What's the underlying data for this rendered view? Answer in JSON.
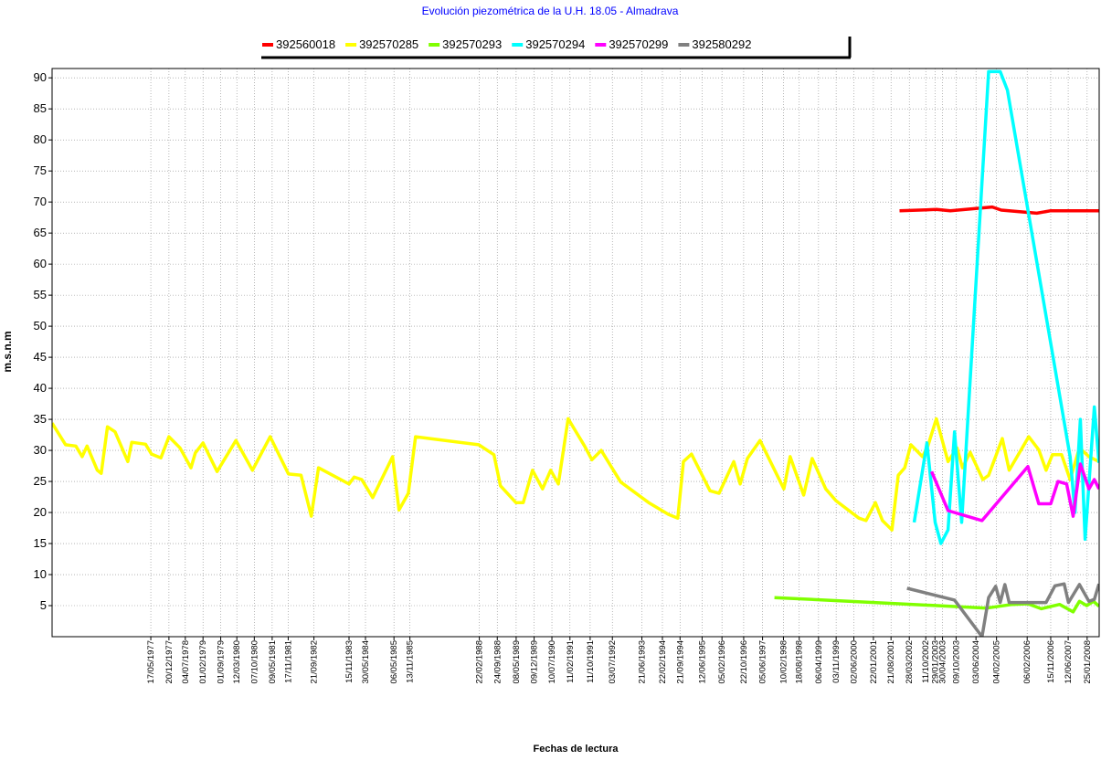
{
  "chart_data": {
    "type": "line",
    "title": "Evolución piezométrica de la U.H. 18.05 - Almadrava",
    "xlabel": "Fechas de lectura",
    "ylabel": "m.s.n.m",
    "xlim": [
      "20/02/1974",
      "17/06/2008"
    ],
    "ylim": [
      0,
      91.5
    ],
    "yticks": [
      5,
      10,
      15,
      20,
      25,
      30,
      35,
      40,
      45,
      50,
      55,
      60,
      65,
      70,
      75,
      80,
      85,
      90
    ],
    "xticks": [
      "17/05/1977",
      "20/12/1977",
      "04/07/1978",
      "01/02/1979",
      "01/09/1979",
      "12/03/1980",
      "07/10/1980",
      "09/05/1981",
      "17/11/1981",
      "21/09/1982",
      "15/11/1983",
      "30/05/1984",
      "06/05/1985",
      "13/11/1985",
      "22/02/1988",
      "24/09/1988",
      "08/05/1989",
      "09/12/1989",
      "10/07/1990",
      "11/02/1991",
      "11/10/1991",
      "03/07/1992",
      "21/06/1993",
      "22/02/1994",
      "21/09/1994",
      "12/06/1995",
      "05/02/1996",
      "22/10/1996",
      "05/06/1997",
      "10/02/1998",
      "18/08/1998",
      "06/04/1999",
      "03/11/1999",
      "02/06/2000",
      "22/01/2001",
      "21/08/2001",
      "28/03/2002",
      "11/10/2002",
      "29/01/2003",
      "30/04/2003",
      "09/10/2003",
      "03/06/2004",
      "04/02/2005",
      "06/02/2006",
      "15/11/2006",
      "12/06/2007",
      "25/01/2008"
    ],
    "grid": true,
    "series": [
      {
        "name": "392560018",
        "color": "#ff0000",
        "x": [
          "01/12/2001",
          "15/02/2003",
          "01/08/2003",
          "15/12/2004",
          "01/04/2005",
          "01/06/2006",
          "15/11/2006",
          "15/06/2008"
        ],
        "values": [
          68.6,
          68.8,
          68.6,
          69.2,
          68.7,
          68.2,
          68.6,
          68.6
        ]
      },
      {
        "name": "392570285",
        "color": "#ffff00",
        "x": [
          "20/02/1974",
          "01/08/1974",
          "01/12/1974",
          "15/02/1975",
          "15/04/1975",
          "15/08/1975",
          "01/10/1975",
          "15/12/1975",
          "15/03/1976",
          "15/08/1976",
          "01/10/1976",
          "15/03/1977",
          "25/05/1977",
          "15/09/1977",
          "20/12/1977",
          "01/05/1978",
          "10/09/1978",
          "01/11/1978",
          "01/02/1979",
          "20/07/1979",
          "01/03/1980",
          "15/09/1980",
          "15/04/1981",
          "20/11/1981",
          "20/04/1982",
          "20/08/1982",
          "15/11/1982",
          "15/11/1983",
          "15/01/1984",
          "15/04/1984",
          "25/08/1984",
          "20/04/1985",
          "05/07/1985",
          "25/10/1985",
          "20/01/1986",
          "15/02/1988",
          "15/08/1988",
          "01/11/1988",
          "05/05/1989",
          "01/08/1989",
          "20/11/1989",
          "20/03/1990",
          "25/06/1990",
          "25/09/1990",
          "20/01/1991",
          "05/08/1991",
          "01/11/1991",
          "20/02/1992",
          "10/10/1992",
          "10/09/1993",
          "05/05/1994",
          "25/08/1994",
          "01/11/1994",
          "05/02/1995",
          "15/09/1995",
          "01/01/1996",
          "25/06/1996",
          "10/09/1996",
          "05/12/1996",
          "05/05/1997",
          "15/02/1998",
          "01/05/1998",
          "10/10/1998",
          "20/01/1999",
          "01/07/1999",
          "01/11/1999",
          "01/08/2000",
          "25/10/2000",
          "15/02/2001",
          "10/05/2001",
          "01/09/2001",
          "15/11/2001",
          "01/02/2002",
          "15/04/2002",
          "01/09/2002",
          "05/11/2002",
          "15/02/2003",
          "05/07/2003",
          "20/10/2003",
          "25/12/2003",
          "25/03/2004",
          "25/08/2004",
          "01/11/2004",
          "15/04/2005",
          "05/07/2005",
          "25/02/2006",
          "25/06/2006",
          "20/09/2006",
          "05/12/2006",
          "25/03/2007",
          "05/07/2007",
          "25/10/2007",
          "15/02/2008",
          "15/06/2008"
        ],
        "values": [
          34.4,
          30.9,
          30.7,
          29,
          30.7,
          26.8,
          26.3,
          33.8,
          33,
          28.2,
          31.3,
          31,
          29.4,
          28.8,
          32.2,
          30.4,
          27.2,
          29.6,
          31.2,
          26.6,
          31.6,
          26.8,
          32.2,
          26.2,
          26,
          19.4,
          27.2,
          24.6,
          25.7,
          25.3,
          22.4,
          29,
          20.4,
          23.1,
          32.2,
          30.9,
          29.3,
          24.3,
          21.6,
          21.6,
          26.8,
          23.8,
          26.8,
          24.6,
          35.1,
          30.7,
          28.5,
          30,
          24.9,
          21.6,
          19.7,
          19.1,
          28.2,
          29.4,
          23.5,
          23.1,
          28.2,
          24.6,
          28.7,
          31.6,
          23.8,
          29,
          22.8,
          28.7,
          23.8,
          21.9,
          19.1,
          18.7,
          21.6,
          18.7,
          17.2,
          26,
          27.2,
          30.9,
          29,
          30.7,
          35.1,
          28.2,
          30.4,
          27.2,
          29.7,
          25.3,
          26,
          31.9,
          26.8,
          32.2,
          30.1,
          26.8,
          29.3,
          29.3,
          25.3,
          30.4,
          29,
          28.2
        ]
      },
      {
        "name": "392570293",
        "color": "#80ff00",
        "x": [
          "25/10/1997",
          "10/10/2004",
          "10/08/2005",
          "15/02/2006",
          "25/07/2006",
          "01/03/2007",
          "10/08/2007",
          "25/10/2007",
          "20/01/2008",
          "10/04/2008",
          "15/06/2008"
        ],
        "values": [
          6.3,
          4.6,
          5.2,
          5.3,
          4.5,
          5.2,
          4,
          5.7,
          5,
          5.7,
          4.9
        ]
      },
      {
        "name": "392570294",
        "color": "#00ffff",
        "x": [
          "25/05/2002",
          "25/10/2002",
          "01/02/2003",
          "10/04/2003",
          "05/07/2003",
          "20/09/2003",
          "15/12/2003",
          "01/11/2004",
          "20/03/2005",
          "15/06/2005",
          "05/07/2007",
          "01/09/2007",
          "05/11/2007",
          "01/01/2008",
          "20/04/2008",
          "15/06/2008"
        ],
        "values": [
          18.4,
          31.2,
          18.4,
          15,
          17.2,
          33,
          18.4,
          91,
          91,
          88,
          29,
          20,
          35,
          15.7,
          37,
          28
        ]
      },
      {
        "name": "392570299",
        "color": "#ff00ff",
        "x": [
          "20/12/2002",
          "05/07/2003",
          "15/08/2004",
          "15/02/2006",
          "25/06/2006",
          "15/11/2006",
          "10/02/2007",
          "25/05/2007",
          "10/08/2007",
          "05/11/2007",
          "15/02/2008",
          "20/04/2008",
          "15/06/2008"
        ],
        "values": [
          26.6,
          20.3,
          18.7,
          27.4,
          21.4,
          21.4,
          25,
          24.6,
          19.4,
          27.8,
          23.8,
          25.3,
          23.8
        ]
      },
      {
        "name": "392580292",
        "color": "#808080",
        "x": [
          "01/03/2002",
          "20/09/2003",
          "15/08/2004",
          "01/11/2004",
          "25/01/2005",
          "20/03/2005",
          "15/05/2005",
          "05/07/2005",
          "20/09/2006",
          "05/01/2007",
          "25/04/2007",
          "15/06/2007",
          "25/10/2007",
          "15/02/2008",
          "20/04/2008",
          "15/06/2008"
        ],
        "values": [
          7.8,
          5.9,
          0,
          6.3,
          8.1,
          5.5,
          8.4,
          5.5,
          5.5,
          8.2,
          8.5,
          5.5,
          8.4,
          5.7,
          6,
          8.5
        ]
      }
    ]
  }
}
